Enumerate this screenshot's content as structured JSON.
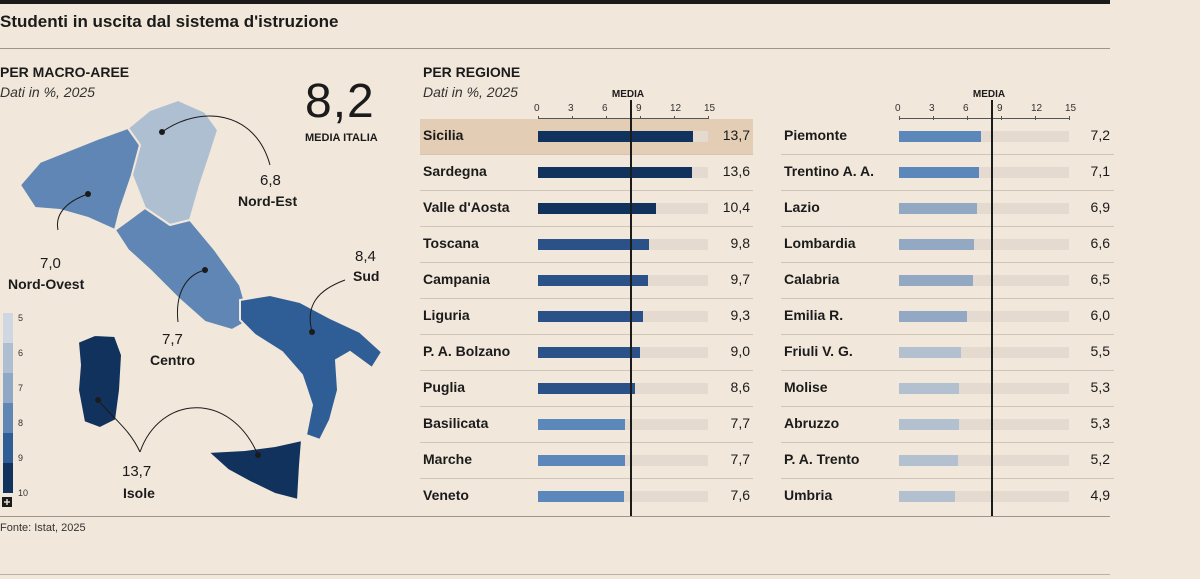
{
  "title": "Studenti in uscita dal sistema d'istruzione",
  "source": "Fonte: Istat, 2025",
  "macro": {
    "title": "PER MACRO-AREE",
    "subtitle": "Dati in %, 2025",
    "media_value": "8,2",
    "media_label": "MEDIA ITALIA",
    "areas": [
      {
        "name": "Nord-Est",
        "value": "6,8"
      },
      {
        "name": "Nord-Ovest",
        "value": "7,0"
      },
      {
        "name": "Sud",
        "value": "8,4"
      },
      {
        "name": "Centro",
        "value": "7,7"
      },
      {
        "name": "Isole",
        "value": "13,7"
      }
    ],
    "legend_ticks": [
      "5",
      "6",
      "7",
      "8",
      "9",
      "10"
    ],
    "legend_colors": [
      "#cfd8e2",
      "#aebfd2",
      "#8ea8c6",
      "#5f86b4",
      "#2f5d95",
      "#12325e"
    ]
  },
  "regioni": {
    "title": "PER REGIONE",
    "subtitle": "Dati in %, 2025",
    "media_label": "MEDIA",
    "ticks": [
      "0",
      "3",
      "6",
      "9",
      "12",
      "15"
    ]
  },
  "chart_data": {
    "type": "bar",
    "xlim": [
      0,
      15
    ],
    "media": 8.2,
    "highlight": "Sicilia",
    "columns": [
      {
        "categories": [
          "Sicilia",
          "Sardegna",
          "Valle d'Aosta",
          "Toscana",
          "Campania",
          "Liguria",
          "P. A. Bolzano",
          "Puglia",
          "Basilicata",
          "Marche",
          "Veneto"
        ],
        "values": [
          13.7,
          13.6,
          10.4,
          9.8,
          9.7,
          9.3,
          9.0,
          8.6,
          7.7,
          7.7,
          7.6
        ],
        "labels": [
          "13,7",
          "13,6",
          "10,4",
          "9,8",
          "9,7",
          "9,3",
          "9,0",
          "8,6",
          "7,7",
          "7,7",
          "7,6"
        ]
      },
      {
        "categories": [
          "Piemonte",
          "Trentino A. A.",
          "Lazio",
          "Lombardia",
          "Calabria",
          "Emilia R.",
          "Friuli V. G.",
          "Molise",
          "Abruzzo",
          "P. A. Trento",
          "Umbria"
        ],
        "values": [
          7.2,
          7.1,
          6.9,
          6.6,
          6.5,
          6.0,
          5.5,
          5.3,
          5.3,
          5.2,
          4.9
        ],
        "labels": [
          "7,2",
          "7,1",
          "6,9",
          "6,6",
          "6,5",
          "6,0",
          "5,5",
          "5,3",
          "5,3",
          "5,2",
          "4,9"
        ]
      }
    ]
  }
}
